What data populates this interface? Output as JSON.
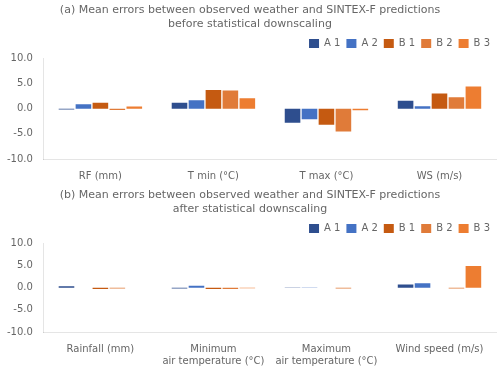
{
  "chart_data": [
    {
      "type": "bar",
      "title": "(a) Mean errors between observed weather and SINTEX-F predictions\nbefore statistical downscaling",
      "categories": [
        "RF (mm)",
        "T min (°C)",
        "T max (°C)",
        "WS (m/s)"
      ],
      "series": [
        {
          "name": "A 1",
          "color": "#2e4e8e",
          "values": [
            -0.15,
            1.2,
            -2.8,
            1.6
          ]
        },
        {
          "name": "A 2",
          "color": "#4472c4",
          "values": [
            0.9,
            1.7,
            -2.1,
            0.5
          ]
        },
        {
          "name": "B 1",
          "color": "#c55a11",
          "values": [
            1.2,
            3.7,
            -3.2,
            3.0
          ]
        },
        {
          "name": "B 2",
          "color": "#e07b39",
          "values": [
            -0.25,
            3.6,
            -4.55,
            2.3
          ]
        },
        {
          "name": "B 3",
          "color": "#ed7d31",
          "values": [
            0.45,
            2.1,
            -0.3,
            4.4
          ]
        }
      ],
      "ylim": [
        -10.0,
        10.0
      ],
      "yticks": [
        {
          "value": -10.0,
          "label": "-10.0"
        },
        {
          "value": -5.0,
          "label": "-5.0"
        },
        {
          "value": 0.0,
          "label": "0.0"
        },
        {
          "value": 5.0,
          "label": "5.0"
        },
        {
          "value": 10.0,
          "label": "10.0"
        }
      ],
      "grid": false,
      "legend": "upper right"
    },
    {
      "type": "bar",
      "title": "(b) Mean errors between observed weather and SINTEX-F predictions\nafter statistical downscaling",
      "categories": [
        "Rainfall (mm)",
        "Minimum\nair temperature (°C)",
        "Maximum\nair temperature (°C)",
        "Wind speed (m/s)"
      ],
      "series": [
        {
          "name": "A 1",
          "color": "#2e4e8e",
          "values": [
            0.35,
            -0.2,
            0.05,
            0.7
          ]
        },
        {
          "name": "A 2",
          "color": "#4472c4",
          "values": [
            0.0,
            0.45,
            0.02,
            1.0
          ]
        },
        {
          "name": "B 1",
          "color": "#c55a11",
          "values": [
            -0.3,
            -0.28,
            0.0,
            0.0
          ]
        },
        {
          "name": "B 2",
          "color": "#e07b39",
          "values": [
            -0.2,
            -0.3,
            -0.18,
            -0.2
          ]
        },
        {
          "name": "B 3",
          "color": "#ed7d31",
          "values": [
            0.0,
            -0.1,
            0.0,
            4.9
          ]
        }
      ],
      "ylim": [
        -10.0,
        10.0
      ],
      "yticks": [
        {
          "value": -10.0,
          "label": "-10.0"
        },
        {
          "value": -5.0,
          "label": "-5.0"
        },
        {
          "value": 0.0,
          "label": "0.0"
        },
        {
          "value": 5.0,
          "label": "5.0"
        },
        {
          "value": 10.0,
          "label": "10.0"
        }
      ],
      "grid": false,
      "legend": "upper right"
    }
  ]
}
